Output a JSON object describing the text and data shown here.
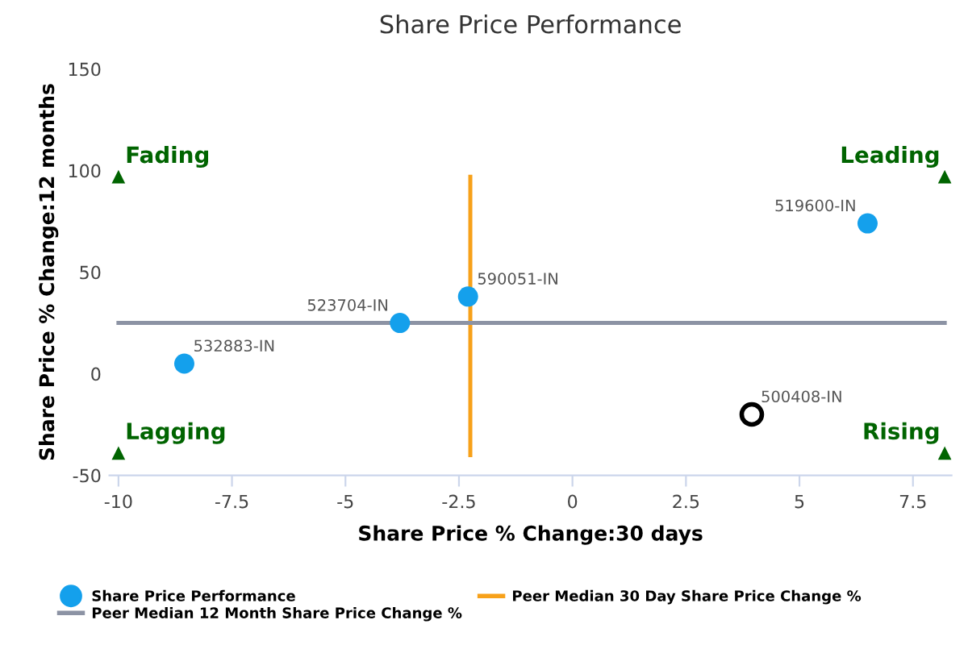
{
  "chart_data": {
    "type": "scatter",
    "title": "Share Price Performance",
    "xlabel": "Share Price % Change:30 days",
    "ylabel": "Share Price % Change:12 months",
    "xlim": [
      -10.2,
      8.35
    ],
    "xticks": [
      -10,
      -7.5,
      -5,
      -2.5,
      0,
      2.5,
      5,
      7.5
    ],
    "ylim": [
      -50,
      150
    ],
    "yticks": [
      -50,
      0,
      50,
      100,
      150
    ],
    "grid": false,
    "legend": "bottom",
    "series": [
      {
        "name": "Share Price Performance",
        "marker": "circle",
        "color": "#14a0ec",
        "x": [
          6.5,
          -2.3,
          -3.8,
          -8.55
        ],
        "values": [
          74,
          38,
          25,
          5
        ]
      },
      {
        "marker": "circle_open",
        "color": "#000000",
        "x": [
          3.95
        ],
        "values": [
          -20
        ]
      },
      {
        "name": "Peer Median 30 Day Share Price Change %",
        "type": "line",
        "color": "#f7a11a",
        "x": [
          -2.25,
          -2.25
        ],
        "values": [
          -40,
          97
        ]
      },
      {
        "name": "Peer Median 12 Month Share Price Change %",
        "type": "line",
        "color": "#8c93a4",
        "x": [
          -10,
          8.2
        ],
        "values": [
          25,
          25
        ]
      },
      {
        "marker": "triangle",
        "color": "#006400",
        "x": [
          -10,
          8.2,
          -10,
          8.2
        ],
        "values": [
          97,
          97,
          -39,
          -39
        ]
      }
    ],
    "annotations": [
      {
        "text": "519600-IN",
        "x": 6.5,
        "y": 74
      },
      {
        "text": "590051-IN",
        "x": -2.3,
        "y": 38
      },
      {
        "text": "523704-IN",
        "x": -3.8,
        "y": 25
      },
      {
        "text": "532883-IN",
        "x": -8.55,
        "y": 5
      },
      {
        "text": "500408-IN",
        "x": 3.95,
        "y": -20
      },
      {
        "text": "Fading",
        "x": -10,
        "y": 97
      },
      {
        "text": "Leading",
        "x": 8.2,
        "y": 97
      },
      {
        "text": "Lagging",
        "x": -10,
        "y": -39
      },
      {
        "text": "Rising",
        "x": 8.2,
        "y": -39
      }
    ]
  }
}
